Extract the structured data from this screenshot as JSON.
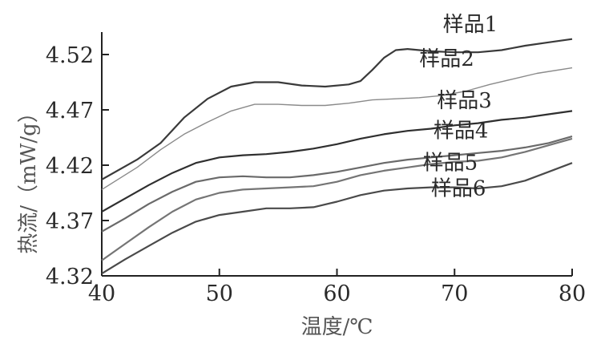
{
  "chart_data": {
    "type": "line",
    "title": "",
    "xlabel": "温度/℃",
    "ylabel": "热流/（mW/g）",
    "xlim": [
      40,
      80
    ],
    "ylim": [
      4.32,
      4.52
    ],
    "x_ticks": [
      40,
      50,
      60,
      70,
      80
    ],
    "y_ticks": [
      4.32,
      4.37,
      4.42,
      4.47,
      4.52
    ],
    "y_tick_labels": [
      "4.32",
      "4.37",
      "4.42",
      "4.47",
      "4.52"
    ],
    "grid": false,
    "legend": "inline labels at right end of each curve",
    "series": [
      {
        "name": "样品1",
        "color": "#3a3a3a",
        "label_x": 69,
        "label_y": 4.541,
        "points": [
          [
            40,
            4.407
          ],
          [
            43,
            4.425
          ],
          [
            45,
            4.44
          ],
          [
            47,
            4.463
          ],
          [
            49,
            4.48
          ],
          [
            51,
            4.491
          ],
          [
            53,
            4.495
          ],
          [
            55,
            4.495
          ],
          [
            57,
            4.492
          ],
          [
            59,
            4.491
          ],
          [
            61,
            4.493
          ],
          [
            62,
            4.496
          ],
          [
            63,
            4.506
          ],
          [
            64,
            4.517
          ],
          [
            65,
            4.524
          ],
          [
            66,
            4.525
          ],
          [
            68,
            4.523
          ],
          [
            70,
            4.522
          ],
          [
            72,
            4.522
          ],
          [
            74,
            4.524
          ],
          [
            76,
            4.528
          ],
          [
            78,
            4.531
          ],
          [
            80,
            4.534
          ]
        ]
      },
      {
        "name": "样品2",
        "color": "#8a8a8a",
        "label_x": 67,
        "label_y": 4.51,
        "points": [
          [
            40,
            4.398
          ],
          [
            43,
            4.418
          ],
          [
            45,
            4.434
          ],
          [
            47,
            4.448
          ],
          [
            49,
            4.459
          ],
          [
            51,
            4.469
          ],
          [
            53,
            4.475
          ],
          [
            55,
            4.475
          ],
          [
            57,
            4.474
          ],
          [
            59,
            4.474
          ],
          [
            61,
            4.476
          ],
          [
            63,
            4.479
          ],
          [
            65,
            4.48
          ],
          [
            67,
            4.481
          ],
          [
            69,
            4.483
          ],
          [
            71,
            4.487
          ],
          [
            73,
            4.493
          ],
          [
            75,
            4.498
          ],
          [
            77,
            4.503
          ],
          [
            80,
            4.508
          ]
        ]
      },
      {
        "name": "样品3",
        "color": "#2f2f2f",
        "label_x": 68.5,
        "label_y": 4.472,
        "points": [
          [
            40,
            4.378
          ],
          [
            42,
            4.39
          ],
          [
            44,
            4.402
          ],
          [
            46,
            4.413
          ],
          [
            48,
            4.422
          ],
          [
            50,
            4.427
          ],
          [
            52,
            4.429
          ],
          [
            54,
            4.43
          ],
          [
            56,
            4.432
          ],
          [
            58,
            4.435
          ],
          [
            60,
            4.439
          ],
          [
            62,
            4.444
          ],
          [
            64,
            4.448
          ],
          [
            66,
            4.451
          ],
          [
            68,
            4.453
          ],
          [
            70,
            4.456
          ],
          [
            72,
            4.458
          ],
          [
            74,
            4.461
          ],
          [
            76,
            4.463
          ],
          [
            78,
            4.466
          ],
          [
            80,
            4.469
          ]
        ]
      },
      {
        "name": "样品4",
        "color": "#6a6a6a",
        "label_x": 68.2,
        "label_y": 4.445,
        "points": [
          [
            40,
            4.36
          ],
          [
            42,
            4.372
          ],
          [
            44,
            4.385
          ],
          [
            46,
            4.396
          ],
          [
            48,
            4.405
          ],
          [
            50,
            4.409
          ],
          [
            52,
            4.41
          ],
          [
            54,
            4.409
          ],
          [
            56,
            4.409
          ],
          [
            58,
            4.411
          ],
          [
            60,
            4.414
          ],
          [
            62,
            4.418
          ],
          [
            64,
            4.422
          ],
          [
            66,
            4.425
          ],
          [
            68,
            4.427
          ],
          [
            70,
            4.429
          ],
          [
            72,
            4.431
          ],
          [
            74,
            4.433
          ],
          [
            76,
            4.436
          ],
          [
            78,
            4.44
          ],
          [
            80,
            4.446
          ]
        ]
      },
      {
        "name": "样品5",
        "color": "#757575",
        "label_x": 67.3,
        "label_y": 4.416,
        "points": [
          [
            40,
            4.334
          ],
          [
            42,
            4.349
          ],
          [
            44,
            4.364
          ],
          [
            46,
            4.378
          ],
          [
            48,
            4.389
          ],
          [
            50,
            4.395
          ],
          [
            52,
            4.398
          ],
          [
            54,
            4.399
          ],
          [
            56,
            4.4
          ],
          [
            58,
            4.401
          ],
          [
            60,
            4.405
          ],
          [
            62,
            4.411
          ],
          [
            64,
            4.415
          ],
          [
            66,
            4.418
          ],
          [
            68,
            4.421
          ],
          [
            70,
            4.423
          ],
          [
            72,
            4.424
          ],
          [
            74,
            4.427
          ],
          [
            76,
            4.432
          ],
          [
            78,
            4.438
          ],
          [
            80,
            4.444
          ]
        ]
      },
      {
        "name": "样品6",
        "color": "#4a4a4a",
        "label_x": 68,
        "label_y": 4.393,
        "points": [
          [
            40,
            4.322
          ],
          [
            42,
            4.335
          ],
          [
            44,
            4.347
          ],
          [
            46,
            4.359
          ],
          [
            48,
            4.369
          ],
          [
            50,
            4.375
          ],
          [
            52,
            4.378
          ],
          [
            54,
            4.381
          ],
          [
            56,
            4.381
          ],
          [
            58,
            4.382
          ],
          [
            60,
            4.387
          ],
          [
            62,
            4.393
          ],
          [
            64,
            4.397
          ],
          [
            66,
            4.399
          ],
          [
            68,
            4.4
          ],
          [
            70,
            4.4
          ],
          [
            72,
            4.399
          ],
          [
            74,
            4.401
          ],
          [
            76,
            4.406
          ],
          [
            78,
            4.414
          ],
          [
            80,
            4.422
          ]
        ]
      }
    ]
  }
}
